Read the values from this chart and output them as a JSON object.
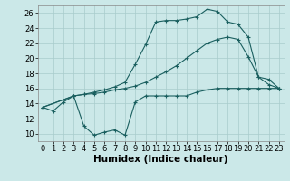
{
  "bg_color": "#cbe8e8",
  "grid_color": "#b0d0d0",
  "line_color": "#1a5f5f",
  "xlabel": "Humidex (Indice chaleur)",
  "xlabel_fontsize": 7.5,
  "tick_fontsize": 6,
  "xlim": [
    -0.5,
    23.5
  ],
  "ylim": [
    9,
    27
  ],
  "yticks": [
    10,
    12,
    14,
    16,
    18,
    20,
    22,
    24,
    26
  ],
  "xticks": [
    0,
    1,
    2,
    3,
    4,
    5,
    6,
    7,
    8,
    9,
    10,
    11,
    12,
    13,
    14,
    15,
    16,
    17,
    18,
    19,
    20,
    21,
    22,
    23
  ],
  "line1_x": [
    0,
    1,
    2,
    3,
    4,
    5,
    6,
    7,
    8,
    9,
    10,
    11,
    12,
    13,
    14,
    15,
    16,
    17,
    18,
    19,
    20,
    21,
    22,
    23
  ],
  "line1_y": [
    13.5,
    13.0,
    14.2,
    15.0,
    11.0,
    9.8,
    10.2,
    10.5,
    9.8,
    14.2,
    15.0,
    15.0,
    15.0,
    15.0,
    15.0,
    15.5,
    15.8,
    16.0,
    16.0,
    16.0,
    16.0,
    16.0,
    16.0,
    16.0
  ],
  "line2_x": [
    0,
    3,
    4,
    5,
    6,
    7,
    8,
    9,
    10,
    11,
    12,
    13,
    14,
    15,
    16,
    17,
    18,
    19,
    20,
    21,
    22,
    23
  ],
  "line2_y": [
    13.5,
    15.0,
    15.2,
    15.3,
    15.5,
    15.8,
    16.0,
    16.3,
    16.8,
    17.5,
    18.2,
    19.0,
    20.0,
    21.0,
    22.0,
    22.5,
    22.8,
    22.5,
    20.2,
    17.5,
    16.5,
    16.0
  ],
  "line3_x": [
    0,
    3,
    4,
    5,
    6,
    7,
    8,
    9,
    10,
    11,
    12,
    13,
    14,
    15,
    16,
    17,
    18,
    19,
    20,
    21,
    22,
    23
  ],
  "line3_y": [
    13.5,
    15.0,
    15.2,
    15.5,
    15.8,
    16.2,
    16.8,
    19.2,
    21.8,
    24.8,
    25.0,
    25.0,
    25.2,
    25.5,
    26.5,
    26.2,
    24.8,
    24.5,
    22.8,
    17.5,
    17.2,
    16.0
  ]
}
